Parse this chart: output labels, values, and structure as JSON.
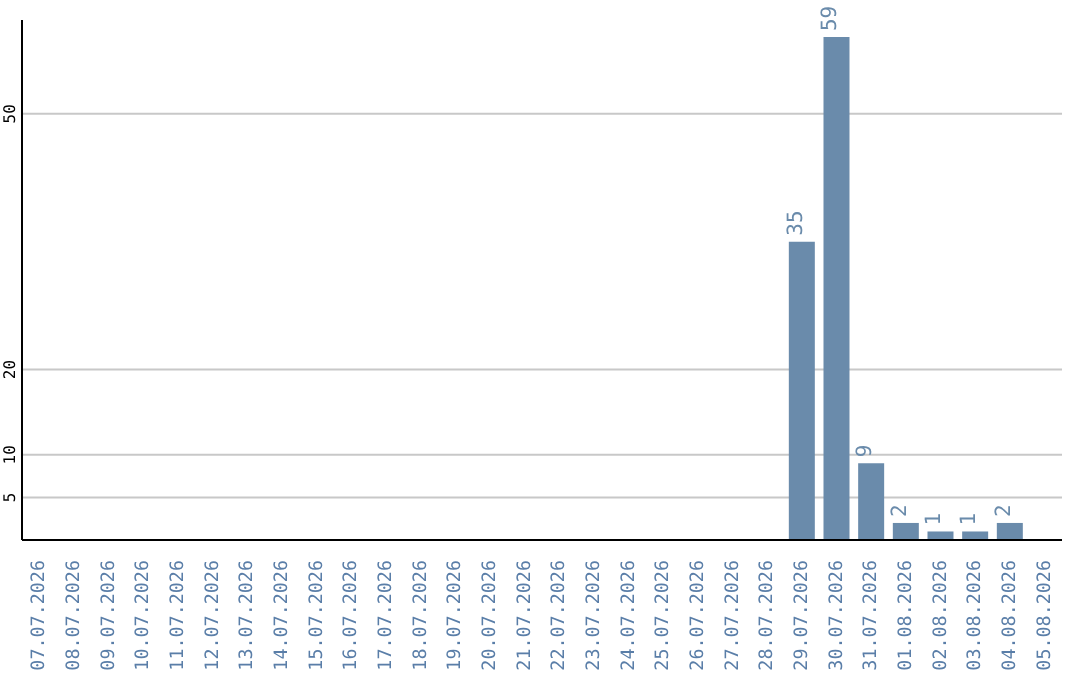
{
  "chart_data": {
    "type": "bar",
    "categories": [
      "07.07.2026",
      "08.07.2026",
      "09.07.2026",
      "10.07.2026",
      "11.07.2026",
      "12.07.2026",
      "13.07.2026",
      "14.07.2026",
      "15.07.2026",
      "16.07.2026",
      "17.07.2026",
      "18.07.2026",
      "19.07.2026",
      "20.07.2026",
      "21.07.2026",
      "22.07.2026",
      "23.07.2026",
      "24.07.2026",
      "25.07.2026",
      "26.07.2026",
      "27.07.2026",
      "28.07.2026",
      "29.07.2026",
      "30.07.2026",
      "31.07.2026",
      "01.08.2026",
      "02.08.2026",
      "03.08.2026",
      "04.08.2026",
      "05.08.2026"
    ],
    "values": [
      0,
      0,
      0,
      0,
      0,
      0,
      0,
      0,
      0,
      0,
      0,
      0,
      0,
      0,
      0,
      0,
      0,
      0,
      0,
      0,
      0,
      0,
      35,
      59,
      9,
      2,
      1,
      1,
      2,
      0
    ],
    "value_labels": [
      null,
      null,
      null,
      null,
      null,
      null,
      null,
      null,
      null,
      null,
      null,
      null,
      null,
      null,
      null,
      null,
      null,
      null,
      null,
      null,
      null,
      null,
      "35",
      "59",
      "9",
      "2",
      "1",
      "1",
      "2",
      null
    ],
    "color": "#6a8bab",
    "ylim": [
      0,
      61
    ],
    "yticks": [
      5,
      10,
      20,
      50
    ],
    "grid": "y"
  }
}
